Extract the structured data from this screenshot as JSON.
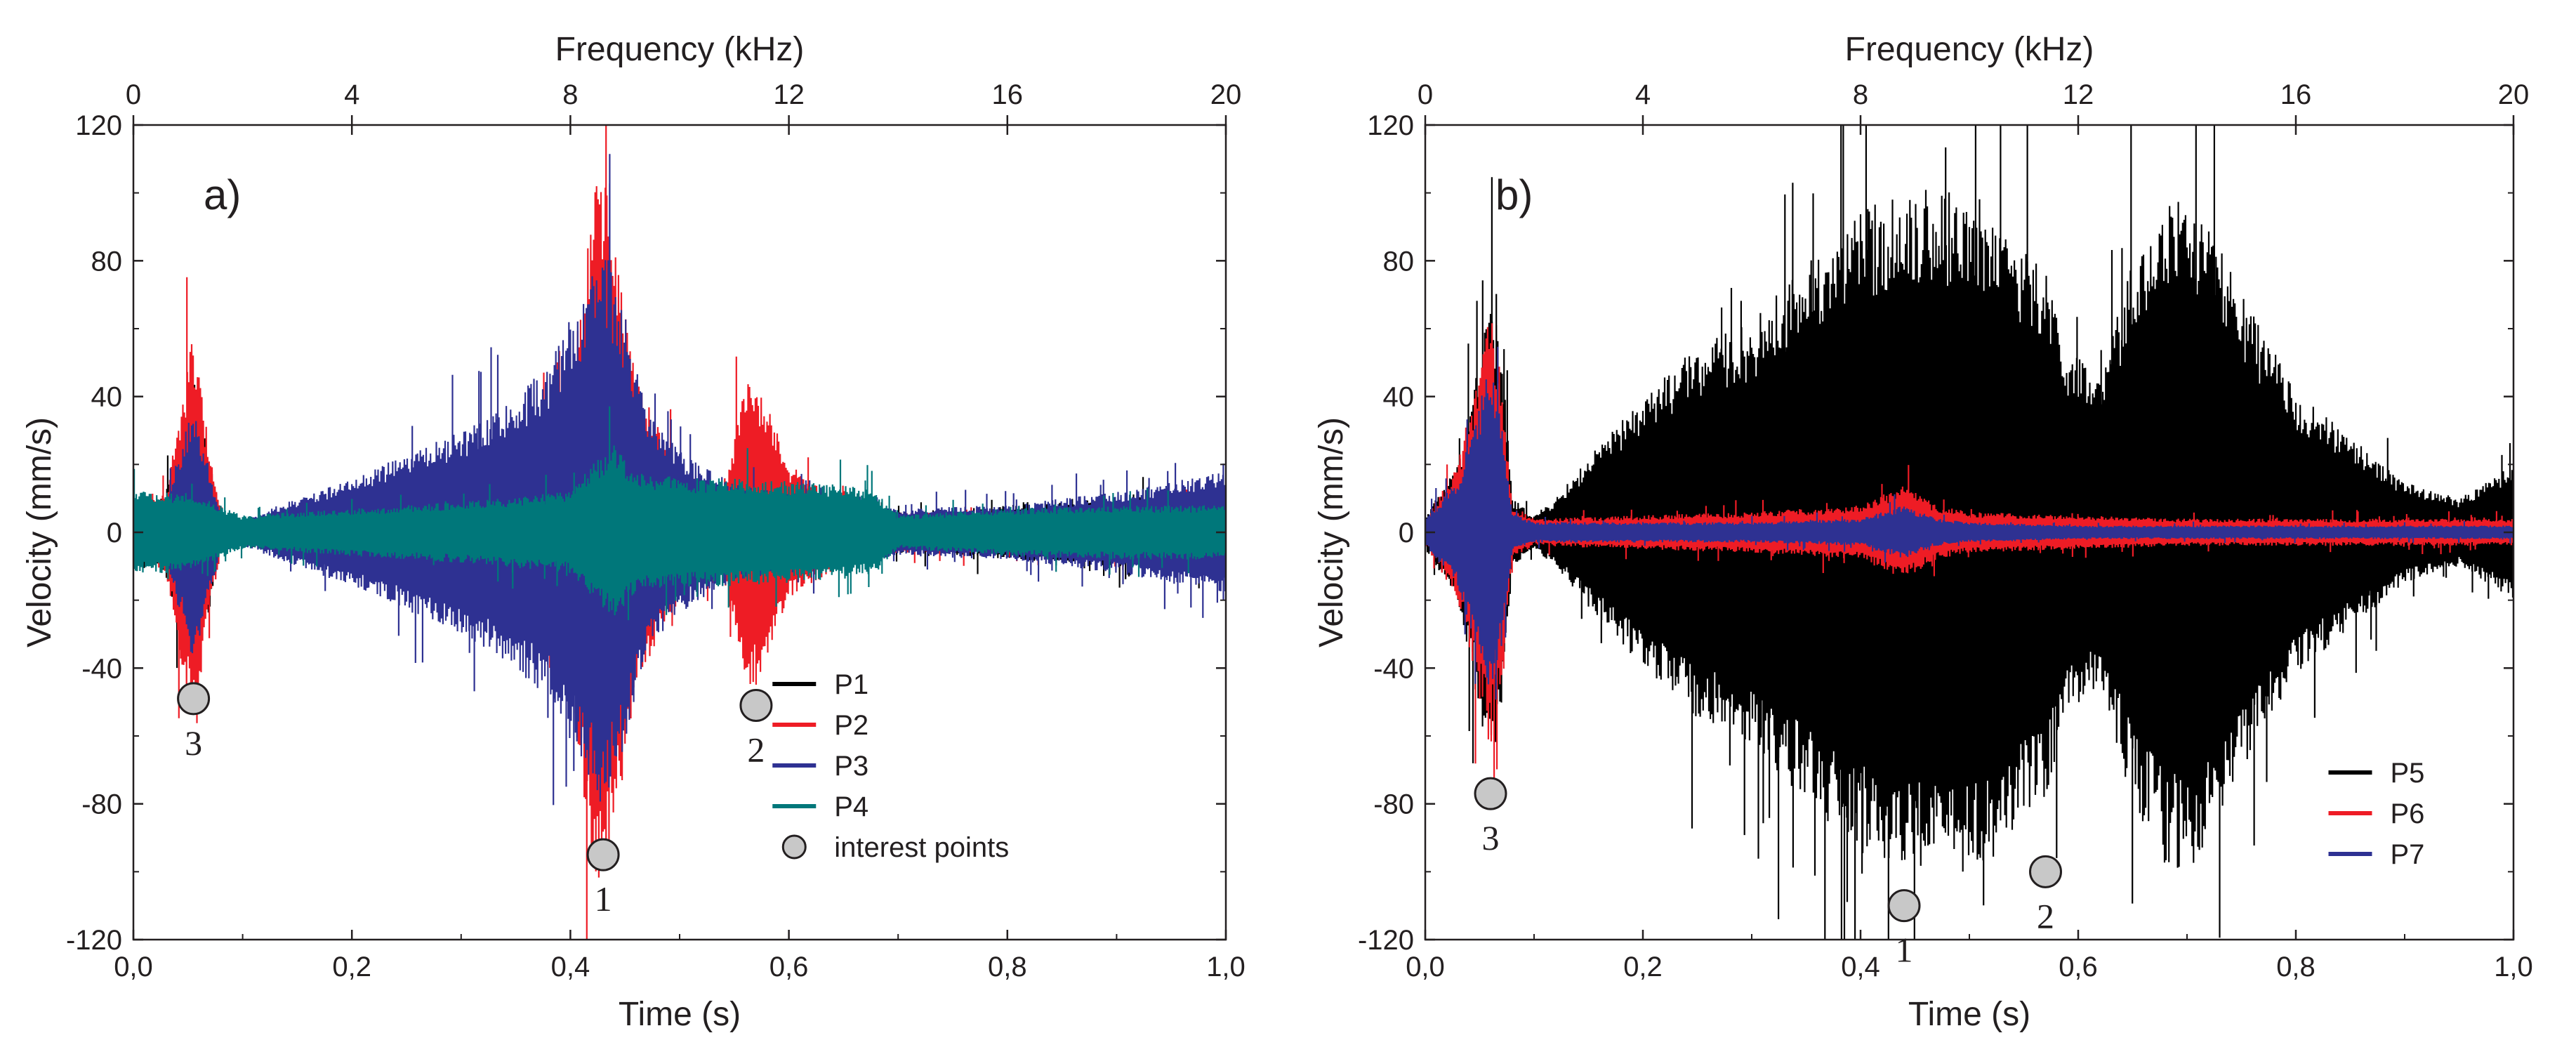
{
  "colors": {
    "P1": "#000000",
    "P2": "#ee1c25",
    "P3": "#2e3192",
    "P4": "#00777a",
    "P5": "#000000",
    "P6": "#ee1c25",
    "P7": "#2e3192",
    "marker_fill": "#c8c8c8"
  },
  "chart_data": [
    {
      "type": "line",
      "panel_label": "a)",
      "xlabel": "Time (s)",
      "ylabel": "Velocity (mm/s)",
      "x2label": "Frequency (kHz)",
      "xlim": [
        0.0,
        1.0
      ],
      "ylim": [
        -120,
        120
      ],
      "x2lim": [
        0,
        20
      ],
      "xticks": [
        "0,0",
        "0,2",
        "0,4",
        "0,6",
        "0,8",
        "1,0"
      ],
      "yticks": [
        "120",
        "80",
        "40",
        "0",
        "-40",
        "-80",
        "-120"
      ],
      "x2ticks": [
        "0",
        "4",
        "8",
        "12",
        "16",
        "20"
      ],
      "legend_position": "bottom-right",
      "series": [
        {
          "name": "P1",
          "envelope": {
            "t": [
              0,
              0.03,
              0.055,
              0.065,
              0.08,
              0.1,
              0.2,
              0.3,
              0.4,
              0.45,
              0.5,
              0.55,
              0.6,
              0.7,
              0.8,
              0.9,
              1.0
            ],
            "amp": [
              5,
              12,
              45,
              30,
              6,
              3,
              4,
              5,
              6,
              7,
              8,
              8,
              7,
              6,
              8,
              10,
              12
            ]
          }
        },
        {
          "name": "P2",
          "envelope": {
            "t": [
              0,
              0.03,
              0.055,
              0.065,
              0.08,
              0.1,
              0.2,
              0.3,
              0.35,
              0.4,
              0.42,
              0.43,
              0.44,
              0.46,
              0.5,
              0.54,
              0.56,
              0.57,
              0.6,
              0.65,
              0.7,
              0.8,
              0.9,
              1.0
            ],
            "amp": [
              6,
              12,
              60,
              35,
              6,
              3,
              5,
              7,
              14,
              45,
              100,
              105,
              90,
              45,
              18,
              14,
              44,
              46,
              20,
              9,
              6,
              6,
              7,
              8
            ]
          }
        },
        {
          "name": "P3",
          "envelope": {
            "t": [
              0,
              0.03,
              0.055,
              0.065,
              0.08,
              0.1,
              0.2,
              0.3,
              0.35,
              0.38,
              0.41,
              0.43,
              0.45,
              0.47,
              0.5,
              0.55,
              0.6,
              0.65,
              0.7,
              0.8,
              0.9,
              1.0
            ],
            "amp": [
              5,
              10,
              38,
              25,
              6,
              4,
              16,
              30,
              40,
              50,
              70,
              85,
              65,
              35,
              24,
              14,
              12,
              10,
              7,
              8,
              12,
              18
            ]
          }
        },
        {
          "name": "P4",
          "envelope": {
            "t": [
              0,
              0.05,
              0.1,
              0.2,
              0.3,
              0.4,
              0.42,
              0.44,
              0.46,
              0.5,
              0.55,
              0.6,
              0.65,
              0.68,
              0.7,
              0.8,
              0.9,
              1.0
            ],
            "amp": [
              12,
              12,
              5,
              7,
              9,
              12,
              20,
              26,
              18,
              16,
              16,
              15,
              14,
              12,
              5,
              7,
              8,
              8
            ]
          }
        }
      ],
      "interest_points": [
        {
          "label": "3",
          "t": 0.055,
          "v": -49
        },
        {
          "label": "1",
          "t": 0.43,
          "v": -95
        },
        {
          "label": "2",
          "t": 0.57,
          "v": -51
        }
      ],
      "legend": [
        "P1",
        "P2",
        "P3",
        "P4",
        "interest points"
      ]
    },
    {
      "type": "line",
      "panel_label": "b)",
      "xlabel": "Time (s)",
      "ylabel": "Velocity (mm/s)",
      "x2label": "Frequency (kHz)",
      "xlim": [
        0.0,
        1.0
      ],
      "ylim": [
        -120,
        120
      ],
      "x2lim": [
        0,
        20
      ],
      "xticks": [
        "0,0",
        "0,2",
        "0,4",
        "0,6",
        "0,8",
        "1,0"
      ],
      "yticks": [
        "120",
        "80",
        "40",
        "0",
        "-40",
        "-80",
        "-120"
      ],
      "x2ticks": [
        "0",
        "4",
        "8",
        "12",
        "16",
        "20"
      ],
      "legend_position": "bottom-right",
      "series": [
        {
          "name": "P5",
          "envelope": {
            "t": [
              0,
              0.03,
              0.06,
              0.07,
              0.08,
              0.1,
              0.12,
              0.15,
              0.2,
              0.25,
              0.3,
              0.35,
              0.4,
              0.45,
              0.5,
              0.53,
              0.55,
              0.57,
              0.59,
              0.62,
              0.65,
              0.68,
              0.7,
              0.72,
              0.75,
              0.8,
              0.85,
              0.9,
              0.95,
              1.0
            ],
            "amp": [
              5,
              20,
              70,
              55,
              10,
              5,
              10,
              22,
              40,
              55,
              62,
              80,
              95,
              102,
              100,
              95,
              83,
              78,
              55,
              45,
              80,
              98,
              100,
              92,
              70,
              42,
              28,
              15,
              10,
              20
            ]
          }
        },
        {
          "name": "P6",
          "envelope": {
            "t": [
              0,
              0.03,
              0.06,
              0.07,
              0.08,
              0.1,
              0.2,
              0.3,
              0.4,
              0.44,
              0.47,
              0.5,
              0.6,
              0.7,
              0.8,
              0.9,
              1.0
            ],
            "amp": [
              4,
              20,
              65,
              45,
              8,
              4,
              5,
              6,
              8,
              14,
              8,
              6,
              5,
              4,
              4,
              4,
              4
            ]
          }
        },
        {
          "name": "P7",
          "envelope": {
            "t": [
              0,
              0.03,
              0.06,
              0.07,
              0.08,
              0.1,
              0.2,
              0.3,
              0.4,
              0.44,
              0.47,
              0.5,
              0.6,
              0.7,
              0.8,
              0.9,
              1.0
            ],
            "amp": [
              4,
              16,
              50,
              35,
              6,
              3,
              3,
              3,
              4,
              8,
              4,
              3,
              2,
              2,
              2,
              2,
              2
            ]
          }
        }
      ],
      "interest_points": [
        {
          "label": "3",
          "t": 0.06,
          "v": -77
        },
        {
          "label": "1",
          "t": 0.44,
          "v": -110
        },
        {
          "label": "2",
          "t": 0.57,
          "v": -100
        }
      ],
      "legend": [
        "P5",
        "P6",
        "P7"
      ]
    }
  ]
}
